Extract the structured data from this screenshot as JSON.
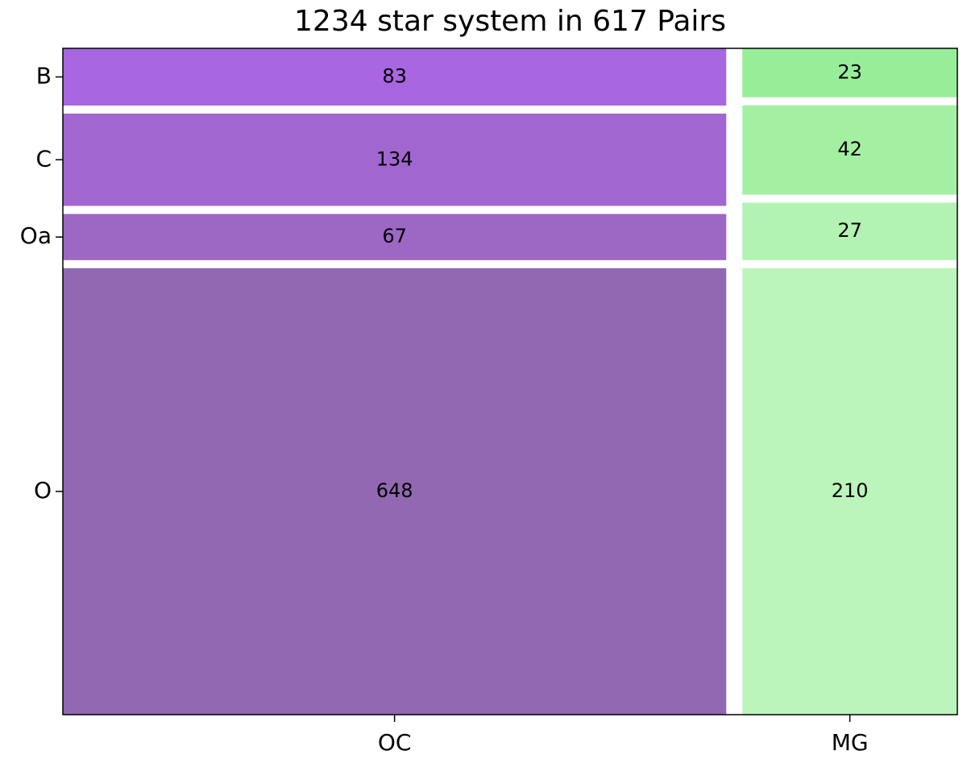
{
  "chart_data": {
    "type": "mosaic",
    "title": "1234 star system in 617 Pairs",
    "categories": [
      "OC",
      "MG"
    ],
    "series": [
      {
        "name": "B",
        "colors": [
          "#a866e0",
          "#98ee98"
        ],
        "values": [
          83,
          23
        ]
      },
      {
        "name": "C",
        "colors": [
          "#a266d0",
          "#a3f0a3"
        ],
        "values": [
          134,
          42
        ]
      },
      {
        "name": "Oa",
        "colors": [
          "#9c68c4",
          "#b2f2b2"
        ],
        "values": [
          67,
          27
        ]
      },
      {
        "name": "O",
        "colors": [
          "#9268b2",
          "#bcf5bc"
        ],
        "values": [
          648,
          210
        ]
      }
    ]
  }
}
